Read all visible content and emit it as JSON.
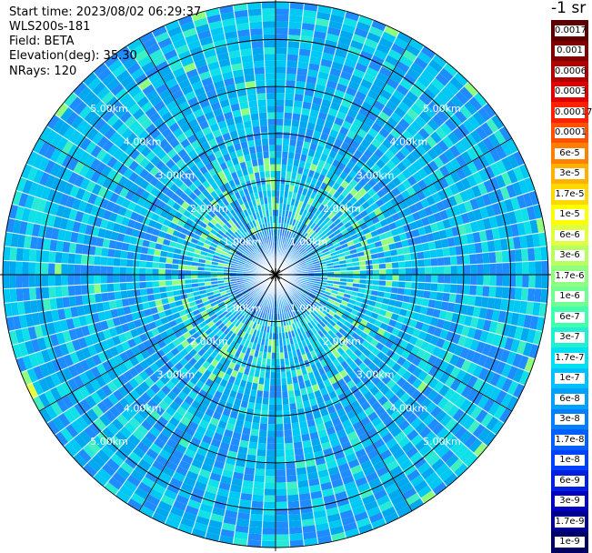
{
  "header": {
    "start_time": "Start time: 2023/08/02 06:29:37",
    "instrument": "WLS200s-181",
    "field": "Field: BETA",
    "elevation": "Elevation(deg): 35.30",
    "nrays": "NRays: 120"
  },
  "chart_data": {
    "type": "heatmap",
    "projection": "polar-ppi",
    "field": "BETA",
    "n_rays": 120,
    "elevation_deg": 35.3,
    "range_rings_km": [
      1,
      2,
      3,
      4,
      5
    ],
    "ring_labels": [
      "1.00km",
      "2.00km",
      "3.00km",
      "4.00km",
      "5.00km"
    ],
    "max_range_km": 5.8,
    "azimuth_lines_every_deg": 30,
    "description_of_values": "mostly 1e-7 to 6e-7 (cyan/blue) with weaker near-range center and sparse 1e-6 to 1e-5 (green/yellow) patches",
    "colorbar": {
      "title": "-1 sr",
      "entries": [
        {
          "label": "0.0017",
          "color": "#5a0000"
        },
        {
          "label": "0.001",
          "color": "#800000"
        },
        {
          "label": "0.0006",
          "color": "#b00000"
        },
        {
          "label": "0.0003",
          "color": "#e00000"
        },
        {
          "label": "0.00017",
          "color": "#ff2000"
        },
        {
          "label": "0.0001",
          "color": "#ff5000"
        },
        {
          "label": "6e-5",
          "color": "#ff8000"
        },
        {
          "label": "3e-5",
          "color": "#ffb000"
        },
        {
          "label": "1.7e-5",
          "color": "#ffd800"
        },
        {
          "label": "1e-5",
          "color": "#ffff00"
        },
        {
          "label": "6e-6",
          "color": "#e0ff40"
        },
        {
          "label": "3e-6",
          "color": "#b8ff60"
        },
        {
          "label": "1.7e-6",
          "color": "#90ff80"
        },
        {
          "label": "1e-6",
          "color": "#70ff90"
        },
        {
          "label": "6e-7",
          "color": "#40ffb0"
        },
        {
          "label": "3e-7",
          "color": "#20f0d0"
        },
        {
          "label": "1.7e-7",
          "color": "#00e0f0"
        },
        {
          "label": "1e-7",
          "color": "#00c0ff"
        },
        {
          "label": "6e-8",
          "color": "#00a0ff"
        },
        {
          "label": "3e-8",
          "color": "#0080ff"
        },
        {
          "label": "1.7e-8",
          "color": "#0060ff"
        },
        {
          "label": "1e-8",
          "color": "#0040ff"
        },
        {
          "label": "6e-9",
          "color": "#0020e0"
        },
        {
          "label": "3e-9",
          "color": "#0000c0"
        },
        {
          "label": "1.7e-9",
          "color": "#000090"
        },
        {
          "label": "1e-9",
          "color": "#000060"
        }
      ]
    }
  }
}
